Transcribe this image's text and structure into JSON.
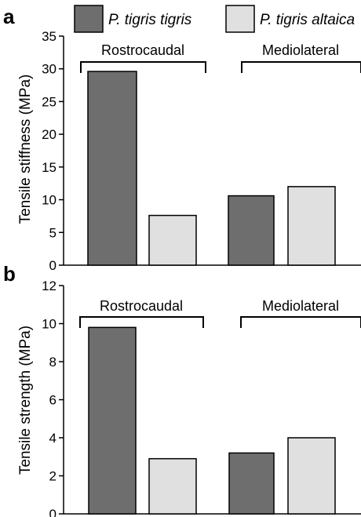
{
  "legend": {
    "items": [
      {
        "label": "P. tigris tigris",
        "color": "#6e6e6e"
      },
      {
        "label": "P. tigris altaica",
        "color": "#e0e0e0"
      }
    ]
  },
  "chart_data": [
    {
      "panel": "a",
      "type": "bar",
      "ylabel": "Tensile stiffness (MPa)",
      "ylim": [
        0,
        35
      ],
      "yticks": [
        0,
        5,
        10,
        15,
        20,
        25,
        30,
        35
      ],
      "groups": [
        "Rostrocaudal",
        "Mediolateral"
      ],
      "series": [
        {
          "name": "P. tigris tigris",
          "values": [
            29.6,
            10.6
          ]
        },
        {
          "name": "P. tigris altaica",
          "values": [
            7.6,
            12.0
          ]
        }
      ]
    },
    {
      "panel": "b",
      "type": "bar",
      "ylabel": "Tensile strength (MPa)",
      "ylim": [
        0,
        12
      ],
      "yticks": [
        0,
        2,
        4,
        6,
        8,
        10,
        12
      ],
      "groups": [
        "Rostrocaudal",
        "Mediolateral"
      ],
      "series": [
        {
          "name": "P. tigris tigris",
          "values": [
            9.8,
            3.2
          ]
        },
        {
          "name": "P. tigris altaica",
          "values": [
            2.9,
            4.0
          ]
        }
      ]
    }
  ],
  "colors": {
    "series_1": "#6e6e6e",
    "series_2": "#e0e0e0",
    "axis": "#000000"
  }
}
